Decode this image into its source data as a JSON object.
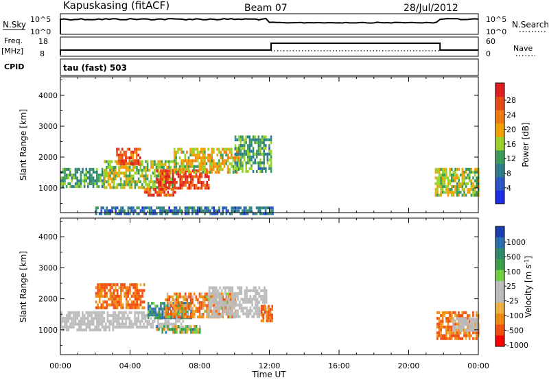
{
  "header": {
    "station": "Kapuskasing (fitACF)",
    "beam": "Beam 07",
    "date": "28/Jul/2012"
  },
  "top_panels": {
    "nsky_label": "N.Sky",
    "nsky_ticks": [
      "10^5",
      "10^0"
    ],
    "nsearch_label": "N.Search",
    "nsearch_ticks": [
      "10^5",
      "10^0"
    ],
    "freq_label_1": "Freq.",
    "freq_label_2": "[MHz]",
    "freq_ticks": [
      "18",
      "8"
    ],
    "nave_label": "Nave",
    "nave_ticks": [
      "60",
      "0"
    ],
    "cpid_label": "CPID",
    "cpid_value": "tau (fast) 503"
  },
  "colors": {
    "power_scale": [
      "#1e2be8",
      "#2b57c8",
      "#2e7d8c",
      "#3c9a5a",
      "#9ad12a",
      "#f2a100",
      "#f07a10",
      "#e84a14",
      "#e11f1f"
    ],
    "velocity_scale": [
      "#ff0000",
      "#f05010",
      "#f08a10",
      "#f0b040",
      "#bcbcbc",
      "#bcbcbc",
      "#70d040",
      "#3aa04a",
      "#2e8a6a",
      "#2a70b0",
      "#1a3fb0"
    ],
    "ground_scatter": "#bcbcbc"
  },
  "chart_data": [
    {
      "type": "heatmap",
      "panel": "power",
      "xlabel": "",
      "ylabel": "Slant Range [km]",
      "xlim_hours": [
        0,
        24
      ],
      "ylim_km": [
        200,
        4600
      ],
      "yticks": [
        "1000",
        "2000",
        "3000",
        "4000"
      ],
      "colorbar_label": "Power [dB]",
      "colorbar_ticks": [
        "28",
        "24",
        "20",
        "16",
        "12",
        "8",
        "4"
      ],
      "echo_regions": [
        {
          "t0": 0.0,
          "t1": 2.5,
          "r0": 1000,
          "r1": 1650,
          "level": 10
        },
        {
          "t0": 2.5,
          "t1": 6.5,
          "r0": 1050,
          "r1": 1900,
          "level": 14
        },
        {
          "t0": 3.2,
          "t1": 4.6,
          "r0": 1750,
          "r1": 2300,
          "level": 24
        },
        {
          "t0": 5.5,
          "t1": 8.5,
          "r0": 1000,
          "r1": 1600,
          "level": 26
        },
        {
          "t0": 4.8,
          "t1": 6.6,
          "r0": 750,
          "r1": 1000,
          "level": 24
        },
        {
          "t0": 6.5,
          "t1": 10.2,
          "r0": 1500,
          "r1": 2300,
          "level": 16
        },
        {
          "t0": 10.0,
          "t1": 12.1,
          "r0": 1500,
          "r1": 2700,
          "level": 10
        },
        {
          "t0": 21.5,
          "t1": 24.0,
          "r0": 800,
          "r1": 1650,
          "level": 14
        },
        {
          "t0": 2.0,
          "t1": 12.2,
          "r0": 200,
          "r1": 400,
          "level": 6
        }
      ]
    },
    {
      "type": "heatmap",
      "panel": "velocity",
      "xlabel": "Time UT",
      "ylabel": "Slant Range [km]",
      "xlim_hours": [
        0,
        24
      ],
      "xticks": [
        "00:00",
        "04:00",
        "08:00",
        "12:00",
        "16:00",
        "20:00",
        "00:00"
      ],
      "ylim_km": [
        200,
        4600
      ],
      "yticks": [
        "1000",
        "2000",
        "3000",
        "4000"
      ],
      "colorbar_label": "Velocity [m s^-1]",
      "colorbar_ticks": [
        "1000",
        "500",
        "100",
        "25",
        "-25",
        "-100",
        "-500",
        "-1000"
      ],
      "echo_regions": [
        {
          "t0": 0.0,
          "t1": 3.0,
          "r0": 950,
          "r1": 1600,
          "velocity": 0,
          "ground_scatter": true
        },
        {
          "t0": 2.0,
          "t1": 4.8,
          "r0": 1700,
          "r1": 2500,
          "velocity": -300
        },
        {
          "t0": 3.0,
          "t1": 7.0,
          "r0": 1100,
          "r1": 1600,
          "velocity": 0,
          "ground_scatter": true
        },
        {
          "t0": 5.0,
          "t1": 7.5,
          "r0": 1400,
          "r1": 1900,
          "velocity": 300
        },
        {
          "t0": 5.5,
          "t1": 8.0,
          "r0": 900,
          "r1": 1150,
          "velocity": 80
        },
        {
          "t0": 6.0,
          "t1": 10.0,
          "r0": 1400,
          "r1": 2200,
          "velocity": -200
        },
        {
          "t0": 8.5,
          "t1": 11.8,
          "r0": 1400,
          "r1": 2400,
          "velocity": 0,
          "ground_scatter": true
        },
        {
          "t0": 11.5,
          "t1": 12.2,
          "r0": 1300,
          "r1": 1800,
          "velocity": -400
        },
        {
          "t0": 21.6,
          "t1": 24.0,
          "r0": 700,
          "r1": 1600,
          "velocity": -300
        },
        {
          "t0": 22.5,
          "t1": 24.0,
          "r0": 1000,
          "r1": 1400,
          "velocity": 0,
          "ground_scatter": true
        }
      ]
    }
  ]
}
